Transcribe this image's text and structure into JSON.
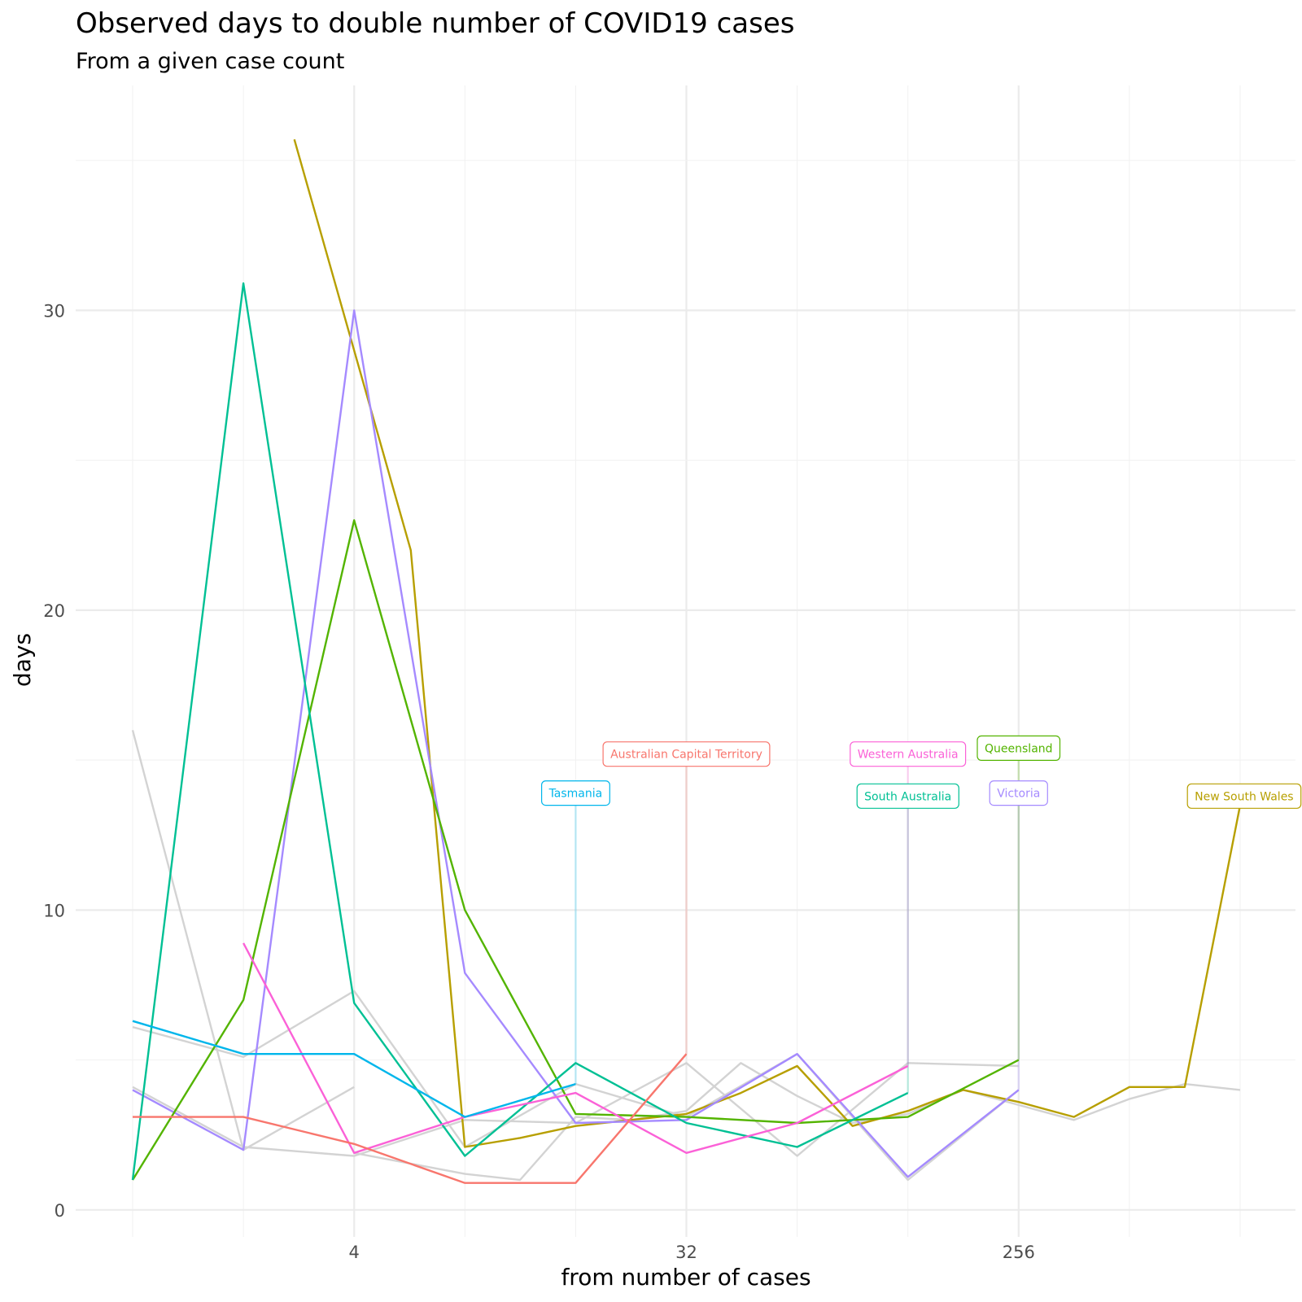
{
  "chart_data": {
    "type": "line",
    "title": "Observed days to double number of COVID19 cases",
    "subtitle": "From a given case count",
    "xlabel": "from number of cases",
    "ylabel": "days",
    "x_scale": "log2",
    "x_ticks": [
      4,
      32,
      256
    ],
    "x_tick_labels": [
      "4",
      "32",
      "256"
    ],
    "y_ticks": [
      0,
      10,
      20,
      30
    ],
    "y_tick_labels": [
      "0",
      "10",
      "20",
      "30"
    ],
    "xlim": [
      0.7,
      1448
    ],
    "ylim": [
      -0.9,
      37.5
    ],
    "grid": true,
    "legend": "none",
    "series": [
      {
        "name": "New South Wales",
        "color": "#B79F00",
        "label_pos": [
          1050,
          13.8
        ],
        "x": [
          2.75,
          5.7,
          8,
          11.3,
          16,
          22.6,
          32,
          45,
          64,
          90.5,
          128,
          181,
          256,
          362,
          512,
          724,
          1024,
          1024
        ],
        "y": [
          35.7,
          22,
          2.1,
          2.4,
          2.8,
          3,
          3.2,
          3.9,
          4.8,
          2.8,
          3.3,
          4,
          3.6,
          3.1,
          4.1,
          4.1,
          13.5,
          13.5
        ]
      },
      {
        "name": "Victoria",
        "color": "#A58AFF",
        "label_pos": [
          256,
          13.9
        ],
        "x": [
          1,
          2,
          4,
          8,
          16,
          32,
          64,
          128,
          256,
          256
        ],
        "y": [
          4,
          2,
          30,
          7.9,
          2.9,
          3,
          5.2,
          1.1,
          4,
          13.9
        ]
      },
      {
        "name": "Queensland",
        "color": "#53B400",
        "label_pos": [
          256,
          15.4
        ],
        "x": [
          1,
          2,
          4,
          8,
          16,
          32,
          64,
          128,
          256,
          256
        ],
        "y": [
          1,
          7,
          23,
          10,
          3.2,
          3.1,
          2.9,
          3.1,
          5,
          15.4
        ]
      },
      {
        "name": "South Australia",
        "color": "#00C094",
        "label_pos": [
          128,
          13.8
        ],
        "x": [
          1,
          2,
          4,
          8,
          16,
          32,
          64,
          128,
          128
        ],
        "y": [
          1,
          30.9,
          6.9,
          1.8,
          4.9,
          2.9,
          2.1,
          3.9,
          13.8
        ]
      },
      {
        "name": "Western Australia",
        "color": "#FB61D7",
        "label_pos": [
          128,
          15.2
        ],
        "x": [
          2,
          4,
          8,
          16,
          32,
          64,
          128,
          128
        ],
        "y": [
          8.9,
          1.9,
          3.1,
          3.9,
          1.9,
          2.9,
          4.8,
          15.2
        ]
      },
      {
        "name": "Tasmania",
        "color": "#00B6EB",
        "label_pos": [
          16,
          13.9
        ],
        "x": [
          1,
          2,
          4,
          8,
          16,
          16
        ],
        "y": [
          6.3,
          5.2,
          5.2,
          3.1,
          4.2,
          13.9
        ]
      },
      {
        "name": "Australian Capital Territory",
        "color": "#F8766D",
        "label_pos": [
          32,
          15.2
        ],
        "x": [
          1,
          2,
          4,
          8,
          16,
          32,
          32
        ],
        "y": [
          3.1,
          3.1,
          2.2,
          0.9,
          0.9,
          5.2,
          15.2
        ]
      }
    ],
    "background_series": [
      {
        "x": [
          1,
          2,
          4
        ],
        "y": [
          16,
          2,
          4.1
        ]
      },
      {
        "x": [
          1,
          2,
          4,
          8,
          16,
          32,
          64,
          128,
          256
        ],
        "y": [
          6.1,
          5.1,
          7.3,
          2.1,
          4.2,
          3.1,
          5.2,
          1.0,
          4.0
        ]
      },
      {
        "x": [
          1,
          2,
          4,
          8,
          16,
          32,
          64,
          128,
          256
        ],
        "y": [
          4.1,
          2.1,
          1.8,
          3.0,
          2.9,
          4.9,
          1.8,
          4.9,
          4.8
        ]
      },
      {
        "x": [
          4,
          8,
          11.3,
          16,
          22.6,
          32,
          45,
          64,
          90.5,
          128,
          181,
          256,
          362,
          512,
          724,
          1024
        ],
        "y": [
          1.9,
          1.2,
          1.0,
          3.1,
          3.0,
          3.3,
          4.9,
          3.8,
          2.9,
          3.2,
          4.0,
          3.5,
          3.0,
          3.7,
          4.2,
          4.0
        ]
      }
    ]
  }
}
